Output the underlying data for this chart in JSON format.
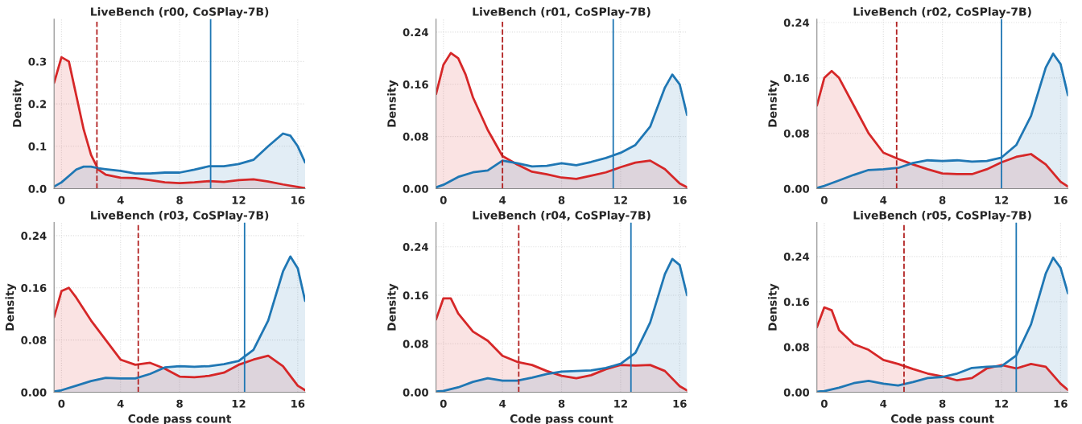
{
  "chart_data": [
    {
      "type": "area",
      "title": "LiveBench (r00, CoSPlay-7B)",
      "ylabel": "Density",
      "xlim": [
        -0.5,
        16.5
      ],
      "ylim": [
        0,
        0.4
      ],
      "xticks": [
        0,
        4,
        8,
        12,
        16
      ],
      "yticks": [
        {
          "value": 0,
          "label": "0.0"
        },
        {
          "value": 0.1,
          "label": "0.1"
        },
        {
          "value": 0.2,
          "label": "0.2"
        },
        {
          "value": 0.3,
          "label": "0.3"
        }
      ],
      "grid": true,
      "legend": false,
      "series": [
        {
          "color": "#d62728",
          "x": [
            -0.5,
            0,
            0.5,
            1,
            1.5,
            2,
            2.5,
            3,
            4,
            5,
            6,
            7,
            8,
            9,
            10,
            11,
            12,
            13,
            14,
            15,
            16,
            16.5
          ],
          "values": [
            0.25,
            0.31,
            0.3,
            0.22,
            0.14,
            0.08,
            0.045,
            0.033,
            0.026,
            0.025,
            0.02,
            0.015,
            0.013,
            0.015,
            0.018,
            0.016,
            0.02,
            0.022,
            0.017,
            0.01,
            0.004,
            0.001
          ]
        },
        {
          "color": "#1f77b4",
          "x": [
            -0.5,
            0,
            0.5,
            1,
            1.5,
            2,
            2.5,
            3,
            4,
            5,
            6,
            7,
            8,
            9,
            10,
            11,
            12,
            13,
            14,
            15,
            15.5,
            16,
            16.5
          ],
          "values": [
            0.005,
            0.015,
            0.03,
            0.045,
            0.052,
            0.052,
            0.048,
            0.046,
            0.042,
            0.036,
            0.036,
            0.038,
            0.038,
            0.045,
            0.053,
            0.053,
            0.058,
            0.068,
            0.1,
            0.13,
            0.125,
            0.1,
            0.062
          ]
        }
      ],
      "ref_lines": [
        {
          "axis": "x",
          "value": 2.4,
          "color": "#b22222",
          "line_style": "dashed"
        },
        {
          "axis": "x",
          "value": 10.1,
          "color": "#1f77b4",
          "line_style": "solid"
        }
      ]
    },
    {
      "type": "area",
      "title": "LiveBench (r01, CoSPlay-7B)",
      "ylabel": "Density",
      "xlim": [
        -0.5,
        16.5
      ],
      "ylim": [
        0,
        0.26
      ],
      "xticks": [
        0,
        4,
        8,
        12,
        16
      ],
      "yticks": [
        {
          "value": 0,
          "label": "0.00"
        },
        {
          "value": 0.08,
          "label": "0.08"
        },
        {
          "value": 0.16,
          "label": "0.16"
        },
        {
          "value": 0.24,
          "label": "0.24"
        }
      ],
      "grid": true,
      "legend": false,
      "series": [
        {
          "color": "#d62728",
          "x": [
            -0.5,
            0,
            0.5,
            1,
            1.5,
            2,
            3,
            4,
            5,
            6,
            7,
            8,
            9,
            10,
            11,
            12,
            13,
            14,
            15,
            16,
            16.5
          ],
          "values": [
            0.145,
            0.19,
            0.208,
            0.2,
            0.175,
            0.14,
            0.09,
            0.05,
            0.037,
            0.026,
            0.022,
            0.017,
            0.015,
            0.02,
            0.025,
            0.033,
            0.04,
            0.043,
            0.03,
            0.008,
            0.002
          ]
        },
        {
          "color": "#1f77b4",
          "x": [
            -0.5,
            0,
            1,
            2,
            3,
            4,
            5,
            6,
            7,
            8,
            9,
            10,
            11,
            12,
            13,
            14,
            15,
            15.5,
            16,
            16.5
          ],
          "values": [
            0.002,
            0.006,
            0.018,
            0.025,
            0.028,
            0.043,
            0.039,
            0.034,
            0.035,
            0.039,
            0.036,
            0.041,
            0.047,
            0.055,
            0.067,
            0.095,
            0.155,
            0.175,
            0.16,
            0.113
          ]
        }
      ],
      "ref_lines": [
        {
          "axis": "x",
          "value": 4.0,
          "color": "#b22222",
          "line_style": "dashed"
        },
        {
          "axis": "x",
          "value": 11.5,
          "color": "#1f77b4",
          "line_style": "solid"
        }
      ]
    },
    {
      "type": "area",
      "title": "LiveBench (r02, CoSPlay-7B)",
      "ylabel": "Density",
      "xlim": [
        -0.5,
        16.5
      ],
      "ylim": [
        0,
        0.245
      ],
      "xticks": [
        0,
        4,
        8,
        12,
        16
      ],
      "yticks": [
        {
          "value": 0,
          "label": "0.00"
        },
        {
          "value": 0.08,
          "label": "0.08"
        },
        {
          "value": 0.16,
          "label": "0.16"
        },
        {
          "value": 0.24,
          "label": "0.24"
        }
      ],
      "grid": true,
      "legend": false,
      "series": [
        {
          "color": "#d62728",
          "x": [
            -0.5,
            0,
            0.5,
            1,
            2,
            3,
            4,
            5,
            6,
            7,
            8,
            9,
            10,
            11,
            12,
            13,
            14,
            15,
            16,
            16.5
          ],
          "values": [
            0.12,
            0.16,
            0.17,
            0.16,
            0.12,
            0.08,
            0.052,
            0.043,
            0.035,
            0.028,
            0.022,
            0.021,
            0.021,
            0.028,
            0.038,
            0.046,
            0.05,
            0.035,
            0.01,
            0.003
          ]
        },
        {
          "color": "#1f77b4",
          "x": [
            -0.5,
            0,
            1,
            2,
            3,
            4,
            5,
            6,
            7,
            8,
            9,
            10,
            11,
            12,
            13,
            14,
            15,
            15.5,
            16,
            16.5
          ],
          "values": [
            0.001,
            0.004,
            0.012,
            0.02,
            0.027,
            0.028,
            0.03,
            0.037,
            0.041,
            0.04,
            0.041,
            0.039,
            0.04,
            0.045,
            0.063,
            0.105,
            0.175,
            0.195,
            0.18,
            0.135
          ]
        }
      ],
      "ref_lines": [
        {
          "axis": "x",
          "value": 4.9,
          "color": "#b22222",
          "line_style": "dashed"
        },
        {
          "axis": "x",
          "value": 12.0,
          "color": "#1f77b4",
          "line_style": "solid"
        }
      ]
    },
    {
      "type": "area",
      "title": "LiveBench (r03, CoSPlay-7B)",
      "xlabel": "Code pass count",
      "ylabel": "Density",
      "xlim": [
        -0.5,
        16.5
      ],
      "ylim": [
        0,
        0.26
      ],
      "xticks": [
        0,
        4,
        8,
        12,
        16
      ],
      "yticks": [
        {
          "value": 0,
          "label": "0.00"
        },
        {
          "value": 0.08,
          "label": "0.08"
        },
        {
          "value": 0.16,
          "label": "0.16"
        },
        {
          "value": 0.24,
          "label": "0.24"
        }
      ],
      "grid": true,
      "legend": false,
      "series": [
        {
          "color": "#d62728",
          "x": [
            -0.5,
            0,
            0.5,
            1,
            2,
            3,
            4,
            5,
            6,
            7,
            8,
            9,
            10,
            11,
            12,
            13,
            14,
            15,
            16,
            16.5
          ],
          "values": [
            0.115,
            0.155,
            0.16,
            0.145,
            0.11,
            0.08,
            0.05,
            0.042,
            0.045,
            0.036,
            0.024,
            0.023,
            0.025,
            0.03,
            0.042,
            0.05,
            0.056,
            0.04,
            0.01,
            0.003
          ]
        },
        {
          "color": "#1f77b4",
          "x": [
            -0.5,
            0,
            1,
            2,
            3,
            4,
            5,
            6,
            7,
            8,
            9,
            10,
            11,
            12,
            13,
            14,
            15,
            15.5,
            16,
            16.5
          ],
          "values": [
            0.001,
            0.003,
            0.01,
            0.017,
            0.022,
            0.021,
            0.021,
            0.028,
            0.038,
            0.04,
            0.039,
            0.04,
            0.043,
            0.048,
            0.065,
            0.11,
            0.185,
            0.208,
            0.19,
            0.14
          ]
        }
      ],
      "ref_lines": [
        {
          "axis": "x",
          "value": 5.2,
          "color": "#b22222",
          "line_style": "dashed"
        },
        {
          "axis": "x",
          "value": 12.4,
          "color": "#1f77b4",
          "line_style": "solid"
        }
      ]
    },
    {
      "type": "area",
      "title": "LiveBench (r04, CoSPlay-7B)",
      "xlabel": "Code pass count",
      "ylabel": "Density",
      "xlim": [
        -0.5,
        16.5
      ],
      "ylim": [
        0,
        0.28
      ],
      "xticks": [
        0,
        4,
        8,
        12,
        16
      ],
      "yticks": [
        {
          "value": 0,
          "label": "0.00"
        },
        {
          "value": 0.08,
          "label": "0.08"
        },
        {
          "value": 0.16,
          "label": "0.16"
        },
        {
          "value": 0.24,
          "label": "0.24"
        }
      ],
      "grid": true,
      "legend": false,
      "series": [
        {
          "color": "#d62728",
          "x": [
            -0.5,
            0,
            0.5,
            1,
            2,
            3,
            4,
            5,
            6,
            7,
            8,
            9,
            10,
            11,
            12,
            13,
            14,
            15,
            16,
            16.5
          ],
          "values": [
            0.12,
            0.155,
            0.155,
            0.13,
            0.1,
            0.085,
            0.06,
            0.05,
            0.045,
            0.035,
            0.027,
            0.023,
            0.028,
            0.038,
            0.045,
            0.044,
            0.045,
            0.035,
            0.01,
            0.003
          ]
        },
        {
          "color": "#1f77b4",
          "x": [
            -0.5,
            0,
            1,
            2,
            3,
            4,
            5,
            6,
            7,
            8,
            9,
            10,
            11,
            12,
            13,
            14,
            15,
            15.5,
            16,
            16.5
          ],
          "values": [
            0.001,
            0.002,
            0.008,
            0.017,
            0.023,
            0.019,
            0.019,
            0.024,
            0.03,
            0.034,
            0.035,
            0.036,
            0.04,
            0.047,
            0.065,
            0.115,
            0.195,
            0.22,
            0.21,
            0.16
          ]
        }
      ],
      "ref_lines": [
        {
          "axis": "x",
          "value": 5.1,
          "color": "#b22222",
          "line_style": "dashed"
        },
        {
          "axis": "x",
          "value": 12.7,
          "color": "#1f77b4",
          "line_style": "solid"
        }
      ]
    },
    {
      "type": "area",
      "title": "LiveBench (r05, CoSPlay-7B)",
      "xlabel": "Code pass count",
      "ylabel": "Density",
      "xlim": [
        -0.5,
        16.5
      ],
      "ylim": [
        0,
        0.3
      ],
      "xticks": [
        0,
        4,
        8,
        12,
        16
      ],
      "yticks": [
        {
          "value": 0,
          "label": "0.00"
        },
        {
          "value": 0.08,
          "label": "0.08"
        },
        {
          "value": 0.16,
          "label": "0.16"
        },
        {
          "value": 0.24,
          "label": "0.24"
        }
      ],
      "grid": true,
      "legend": false,
      "series": [
        {
          "color": "#d62728",
          "x": [
            -0.5,
            0,
            0.5,
            1,
            2,
            3,
            4,
            5,
            6,
            7,
            8,
            9,
            10,
            11,
            12,
            13,
            14,
            15,
            16,
            16.5
          ],
          "values": [
            0.115,
            0.15,
            0.145,
            0.11,
            0.085,
            0.075,
            0.057,
            0.05,
            0.041,
            0.033,
            0.028,
            0.021,
            0.025,
            0.042,
            0.048,
            0.042,
            0.05,
            0.045,
            0.015,
            0.004
          ]
        },
        {
          "color": "#1f77b4",
          "x": [
            -0.5,
            0,
            1,
            2,
            3,
            4,
            5,
            6,
            7,
            8,
            9,
            10,
            11,
            12,
            13,
            14,
            15,
            15.5,
            16,
            16.5
          ],
          "values": [
            0.001,
            0.002,
            0.008,
            0.016,
            0.02,
            0.015,
            0.012,
            0.018,
            0.025,
            0.027,
            0.033,
            0.043,
            0.045,
            0.046,
            0.065,
            0.12,
            0.21,
            0.238,
            0.22,
            0.175
          ]
        }
      ],
      "ref_lines": [
        {
          "axis": "x",
          "value": 5.4,
          "color": "#b22222",
          "line_style": "dashed"
        },
        {
          "axis": "x",
          "value": 13.0,
          "color": "#1f77b4",
          "line_style": "solid"
        }
      ]
    }
  ]
}
